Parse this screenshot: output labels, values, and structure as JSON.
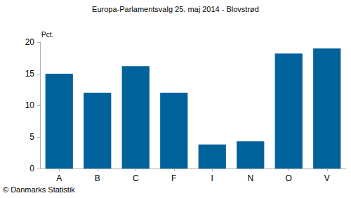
{
  "chart_data": {
    "type": "bar",
    "title": "Europa-Parlamentsvalg 25. maj 2014 - Blovstrød",
    "ylabel": "Pct.",
    "source": "© Danmarks Statistik",
    "categories": [
      "A",
      "B",
      "C",
      "F",
      "I",
      "N",
      "O",
      "V"
    ],
    "values": [
      15.0,
      12.0,
      16.2,
      12.0,
      3.8,
      4.3,
      18.2,
      19.0
    ],
    "color": "#00629b",
    "ylim": [
      0,
      20
    ],
    "yticks": [
      0,
      5,
      10,
      15,
      20
    ],
    "grid": false
  }
}
